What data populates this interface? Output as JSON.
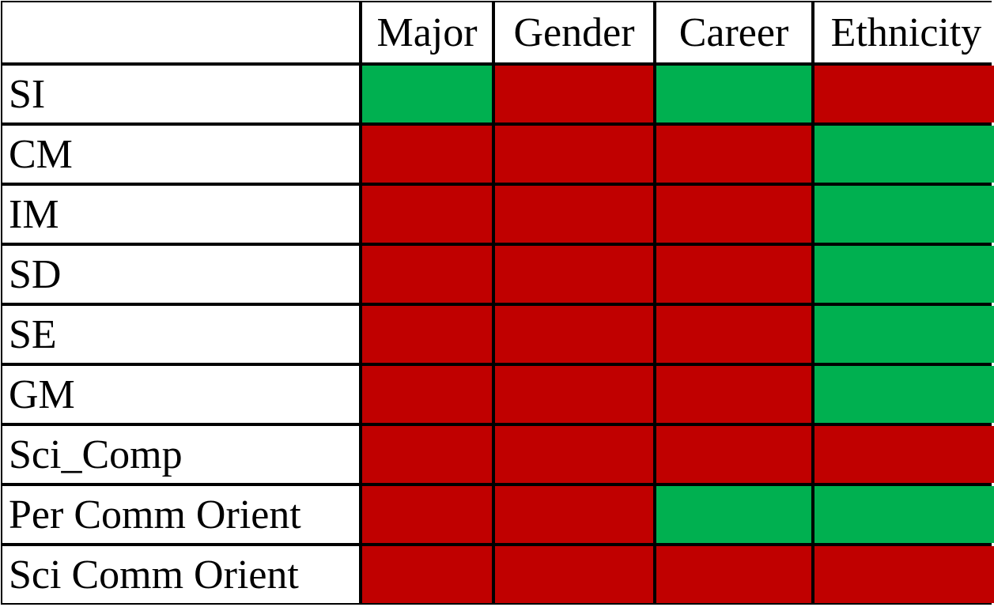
{
  "chart_data": {
    "type": "heatmap",
    "columns": [
      "Major",
      "Gender",
      "Career",
      "Ethnicity"
    ],
    "rows": [
      "SI",
      "CM",
      "IM",
      "SD",
      "SE",
      "GM",
      "Sci_Comp",
      "Per Comm Orient",
      "Sci Comm Orient"
    ],
    "cells": [
      [
        "green",
        "red",
        "green",
        "red"
      ],
      [
        "red",
        "red",
        "red",
        "green"
      ],
      [
        "red",
        "red",
        "red",
        "green"
      ],
      [
        "red",
        "red",
        "red",
        "green"
      ],
      [
        "red",
        "red",
        "red",
        "green"
      ],
      [
        "red",
        "red",
        "red",
        "green"
      ],
      [
        "red",
        "red",
        "red",
        "red"
      ],
      [
        "red",
        "red",
        "green",
        "green"
      ],
      [
        "red",
        "red",
        "red",
        "red"
      ]
    ],
    "colors": {
      "green": "#00B050",
      "red": "#C00000"
    }
  }
}
